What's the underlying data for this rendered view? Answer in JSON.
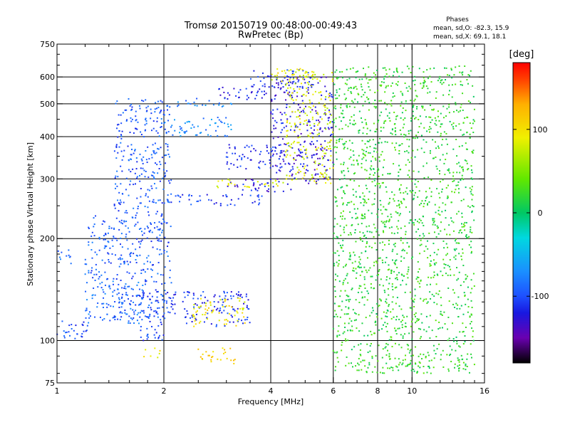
{
  "chart_data": {
    "type": "scatter",
    "title": "Tromsø 20150719 00:48:00-00:49:43",
    "subtitle": "RwPretec (Bp)",
    "xlabel": "Frequency [MHz]",
    "ylabel": "Stationary phase Virtual Height [km]",
    "x_scale": "log",
    "y_scale": "log",
    "xlim": [
      1,
      16
    ],
    "ylim": [
      75,
      750
    ],
    "x_ticks": [
      1,
      2,
      4,
      6,
      8,
      10,
      16
    ],
    "x_tick_labels": [
      "1",
      "2",
      "4",
      "6",
      "8",
      "10",
      "16"
    ],
    "x_grid": [
      1,
      2,
      4,
      6,
      8,
      10,
      16
    ],
    "x_minor_ticks": [
      1.2,
      1.4,
      1.6,
      1.8,
      2.5,
      3,
      3.5,
      4.5,
      5,
      5.5,
      6.5,
      7,
      7.5,
      8.5,
      9,
      9.5,
      11,
      12,
      13,
      14,
      15
    ],
    "y_ticks": [
      75,
      100,
      200,
      300,
      400,
      500,
      600,
      750
    ],
    "y_tick_labels": [
      "75",
      "100",
      "200",
      "300",
      "400",
      "500",
      "600",
      "750"
    ],
    "y_grid": [
      100,
      200,
      300,
      400,
      500,
      600
    ],
    "y_minor_ticks": [
      80,
      90,
      110,
      120,
      130,
      140,
      150,
      160,
      170,
      180,
      190,
      250,
      350,
      450,
      550,
      650,
      700
    ],
    "grid": true,
    "legend": {
      "title": "Phases",
      "lines": [
        "mean, sd,O: -82.3, 15.9",
        "mean, sd,X: 69.1, 18.1"
      ],
      "position": "top-right"
    },
    "colorbar": {
      "label": "[deg]",
      "range": [
        -180,
        180
      ],
      "ticks": [
        100,
        0,
        -100
      ],
      "tick_labels": [
        "100",
        "0",
        "-100"
      ],
      "colormap": "rainbow (black → purple → blue → cyan → green → yellow → orange → red)"
    },
    "color_stops": [
      [
        -180,
        "#000000"
      ],
      [
        -150,
        "#6a00b0"
      ],
      [
        -120,
        "#1818e0"
      ],
      [
        -100,
        "#1e50ff"
      ],
      [
        -70,
        "#1a90ff"
      ],
      [
        -30,
        "#00d8e0"
      ],
      [
        0,
        "#00c864"
      ],
      [
        40,
        "#60e800"
      ],
      [
        90,
        "#f0f000"
      ],
      [
        130,
        "#ffb000"
      ],
      [
        160,
        "#ff4000"
      ],
      [
        180,
        "#ff0000"
      ]
    ],
    "series": [
      {
        "freq_range": [
          1.0,
          1.22
        ],
        "height_range": [
          100,
          116
        ],
        "phase": -100
      },
      {
        "freq_range": [
          1.0,
          1.1
        ],
        "height_range": [
          165,
          185
        ],
        "phase": -85
      },
      {
        "freq_range": [
          1.2,
          1.45
        ],
        "height_range": [
          150,
          235
        ],
        "phase": -95
      },
      {
        "freq_range": [
          1.2,
          1.75
        ],
        "height_range": [
          112,
          150
        ],
        "phase": -85
      },
      {
        "freq_range": [
          1.45,
          2.1
        ],
        "height_range": [
          115,
          520
        ],
        "phase": -95
      },
      {
        "freq_range": [
          1.7,
          2.0
        ],
        "height_range": [
          100,
          140
        ],
        "phase": -105
      },
      {
        "freq_range": [
          2.0,
          3.5
        ],
        "height_range": [
          110,
          140
        ],
        "phase": -110
      },
      {
        "freq_range": [
          2.0,
          3.8
        ],
        "height_range": [
          250,
          270
        ],
        "phase": -105
      },
      {
        "freq_range": [
          3.0,
          4.6
        ],
        "height_range": [
          275,
          300
        ],
        "phase": -120
      },
      {
        "freq_range": [
          4.0,
          6.0
        ],
        "height_range": [
          290,
          600
        ],
        "phase": -125
      },
      {
        "freq_range": [
          2.0,
          3.2
        ],
        "height_range": [
          490,
          520
        ],
        "phase": -80
      },
      {
        "freq_range": [
          2.8,
          4.2
        ],
        "height_range": [
          510,
          560
        ],
        "phase": -115
      },
      {
        "freq_range": [
          3.5,
          5.2
        ],
        "height_range": [
          560,
          630
        ],
        "phase": -110
      },
      {
        "freq_range": [
          2.0,
          3.1
        ],
        "height_range": [
          400,
          460
        ],
        "phase": -75
      },
      {
        "freq_range": [
          3.0,
          4.5
        ],
        "height_range": [
          320,
          380
        ],
        "phase": -110
      },
      {
        "freq_range": [
          2.8,
          4.4
        ],
        "height_range": [
          283,
          300
        ],
        "phase": 85
      },
      {
        "freq_range": [
          4.4,
          6.0
        ],
        "height_range": [
          290,
          640
        ],
        "phase": 80
      },
      {
        "freq_range": [
          4.0,
          5.3
        ],
        "height_range": [
          580,
          640
        ],
        "phase": 90
      },
      {
        "freq_range": [
          2.4,
          3.4
        ],
        "height_range": [
          110,
          135
        ],
        "phase": 95
      },
      {
        "freq_range": [
          1.75,
          1.95
        ],
        "height_range": [
          88,
          95
        ],
        "phase": 95
      },
      {
        "freq_range": [
          2.5,
          3.2
        ],
        "height_range": [
          85,
          95
        ],
        "phase": 110
      },
      {
        "freq_range": [
          6.0,
          15.0
        ],
        "height_range": [
          80,
          650
        ],
        "phase": 20
      }
    ]
  }
}
